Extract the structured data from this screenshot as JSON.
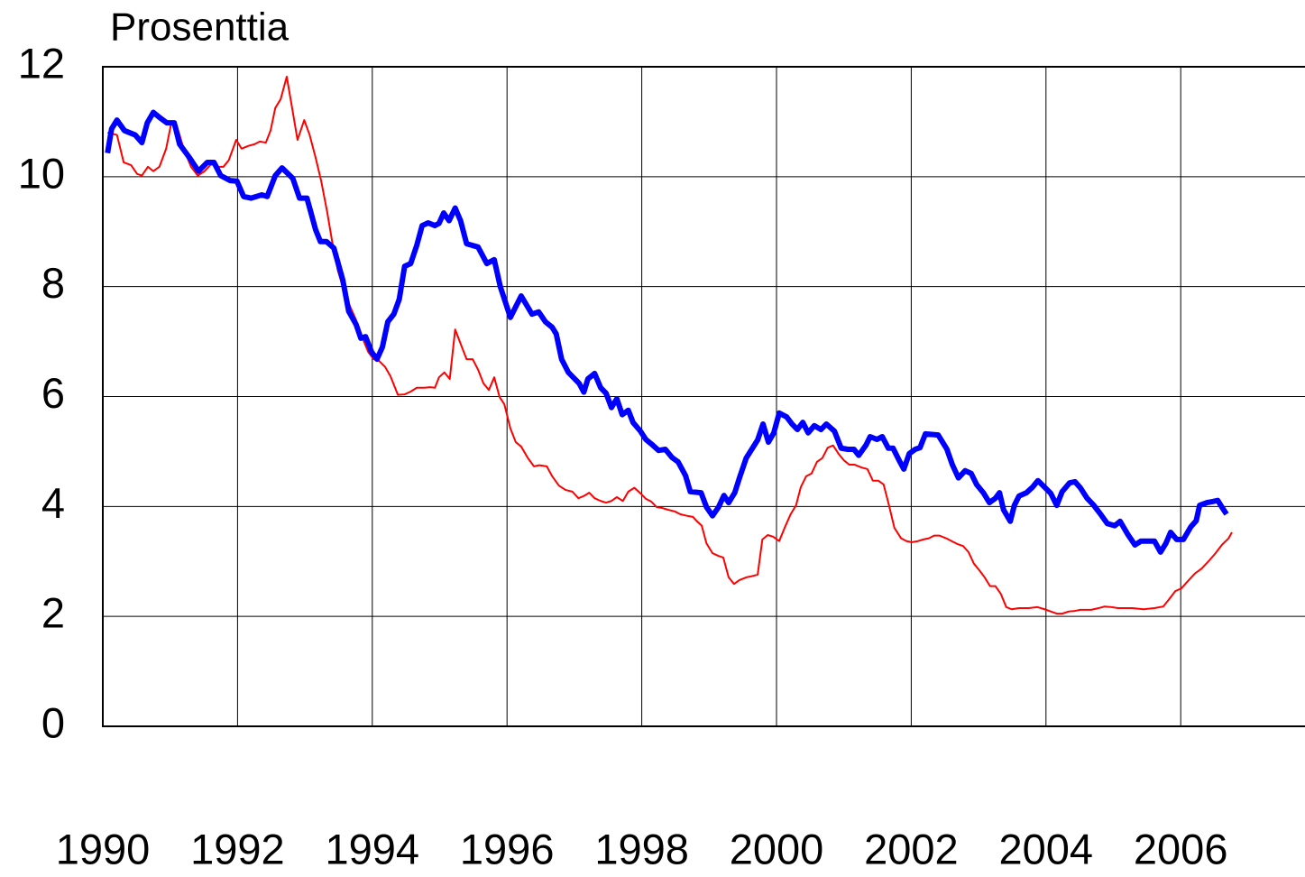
{
  "chart_data": {
    "type": "line",
    "title": "Prosenttia",
    "xlim": [
      1990,
      2008
    ],
    "xticks": [
      1990,
      1992,
      1994,
      1996,
      1998,
      2000,
      2002,
      2004,
      2006
    ],
    "ylim": [
      0,
      12
    ],
    "yticks": [
      0,
      2,
      4,
      6,
      8,
      10,
      12
    ],
    "grid": true,
    "series": [
      {
        "color": "#0000ff",
        "x": [
          1990.07,
          1990.13,
          1990.21,
          1990.32,
          1990.48,
          1990.58,
          1990.66,
          1990.75,
          1990.84,
          1990.95,
          1991.06,
          1991.14,
          1991.29,
          1991.42,
          1991.55,
          1991.65,
          1991.75,
          1991.89,
          1991.99,
          1992.09,
          1992.2,
          1992.36,
          1992.44,
          1992.56,
          1992.66,
          1992.82,
          1992.92,
          1993.03,
          1993.16,
          1993.23,
          1993.32,
          1993.43,
          1993.56,
          1993.65,
          1993.76,
          1993.83,
          1993.9,
          1993.99,
          1994.07,
          1994.15,
          1994.23,
          1994.32,
          1994.4,
          1994.48,
          1994.57,
          1994.66,
          1994.74,
          1994.83,
          1994.93,
          1994.99,
          1995.06,
          1995.14,
          1995.23,
          1995.31,
          1995.4,
          1995.57,
          1995.7,
          1995.81,
          1995.9,
          1996.05,
          1996.21,
          1996.37,
          1996.47,
          1996.57,
          1996.67,
          1996.73,
          1996.81,
          1996.91,
          1997.07,
          1997.14,
          1997.2,
          1997.3,
          1997.39,
          1997.47,
          1997.55,
          1997.63,
          1997.71,
          1997.8,
          1997.87,
          1997.98,
          1998.06,
          1998.14,
          1998.25,
          1998.35,
          1998.45,
          1998.54,
          1998.65,
          1998.72,
          1998.88,
          1998.96,
          1999.05,
          1999.14,
          1999.22,
          1999.29,
          1999.38,
          1999.45,
          1999.55,
          1999.72,
          1999.8,
          1999.88,
          1999.96,
          2000.04,
          2000.15,
          2000.23,
          2000.31,
          2000.39,
          2000.47,
          2000.56,
          2000.66,
          2000.74,
          2000.86,
          2000.96,
          2001.06,
          2001.15,
          2001.22,
          2001.33,
          2001.39,
          2001.49,
          2001.57,
          2001.66,
          2001.73,
          2001.82,
          2001.89,
          2001.97,
          2002.06,
          2002.13,
          2002.21,
          2002.4,
          2002.53,
          2002.61,
          2002.7,
          2002.8,
          2002.89,
          2002.97,
          2003.07,
          2003.16,
          2003.25,
          2003.31,
          2003.37,
          2003.47,
          2003.53,
          2003.6,
          2003.71,
          2003.8,
          2003.88,
          2003.98,
          2004.07,
          2004.16,
          2004.24,
          2004.35,
          2004.43,
          2004.51,
          2004.61,
          2004.71,
          2004.81,
          2004.91,
          2005.02,
          2005.1,
          2005.21,
          2005.32,
          2005.41,
          2005.61,
          2005.7,
          2005.78,
          2005.85,
          2005.94,
          2006.04,
          2006.15,
          2006.23,
          2006.28,
          2006.39,
          2006.48,
          2006.55,
          2006.61,
          2006.68
        ],
        "values": [
          10.43,
          10.87,
          11.03,
          10.84,
          10.76,
          10.62,
          10.98,
          11.17,
          11.08,
          10.98,
          10.98,
          10.59,
          10.34,
          10.1,
          10.26,
          10.26,
          10.02,
          9.93,
          9.92,
          9.64,
          9.61,
          9.67,
          9.64,
          10.02,
          10.16,
          9.97,
          9.61,
          9.61,
          9.03,
          8.82,
          8.82,
          8.7,
          8.13,
          7.55,
          7.31,
          7.06,
          7.09,
          6.81,
          6.68,
          6.9,
          7.36,
          7.5,
          7.77,
          8.37,
          8.42,
          8.75,
          9.11,
          9.16,
          9.11,
          9.15,
          9.34,
          9.2,
          9.43,
          9.2,
          8.78,
          8.72,
          8.42,
          8.49,
          8.0,
          7.44,
          7.83,
          7.5,
          7.54,
          7.36,
          7.26,
          7.14,
          6.68,
          6.44,
          6.24,
          6.08,
          6.32,
          6.42,
          6.16,
          6.06,
          5.8,
          5.96,
          5.67,
          5.75,
          5.53,
          5.37,
          5.22,
          5.14,
          5.02,
          5.04,
          4.89,
          4.81,
          4.56,
          4.27,
          4.25,
          3.99,
          3.83,
          3.99,
          4.2,
          4.07,
          4.25,
          4.52,
          4.88,
          5.21,
          5.5,
          5.17,
          5.34,
          5.7,
          5.63,
          5.5,
          5.4,
          5.53,
          5.34,
          5.47,
          5.4,
          5.5,
          5.37,
          5.06,
          5.04,
          5.04,
          4.93,
          5.12,
          5.27,
          5.22,
          5.27,
          5.06,
          5.06,
          4.84,
          4.68,
          4.96,
          5.04,
          5.07,
          5.32,
          5.3,
          5.04,
          4.76,
          4.52,
          4.65,
          4.6,
          4.4,
          4.25,
          4.07,
          4.15,
          4.25,
          3.94,
          3.73,
          4.02,
          4.19,
          4.25,
          4.35,
          4.47,
          4.35,
          4.24,
          4.02,
          4.27,
          4.43,
          4.45,
          4.34,
          4.15,
          4.02,
          3.86,
          3.69,
          3.65,
          3.73,
          3.5,
          3.3,
          3.37,
          3.37,
          3.17,
          3.33,
          3.53,
          3.4,
          3.4,
          3.63,
          3.74,
          4.02,
          4.07,
          4.09,
          4.11,
          3.99,
          3.86
        ]
      },
      {
        "color": "#ff0000",
        "x": [
          1990.07,
          1990.21,
          1990.31,
          1990.42,
          1990.51,
          1990.58,
          1990.67,
          1990.75,
          1990.84,
          1990.94,
          1991.02,
          1991.1,
          1991.2,
          1991.31,
          1991.41,
          1991.51,
          1991.61,
          1991.7,
          1991.79,
          1991.87,
          1991.98,
          1992.06,
          1992.16,
          1992.25,
          1992.33,
          1992.42,
          1992.49,
          1992.56,
          1992.64,
          1992.73,
          1992.81,
          1992.89,
          1992.99,
          1993.07,
          1993.16,
          1993.24,
          1993.33,
          1993.41,
          1993.49,
          1993.59,
          1993.67,
          1993.76,
          1993.84,
          1993.94,
          1994.02,
          1994.1,
          1994.19,
          1994.27,
          1994.38,
          1994.48,
          1994.57,
          1994.66,
          1994.77,
          1994.86,
          1994.93,
          1994.99,
          1995.07,
          1995.15,
          1995.23,
          1995.33,
          1995.4,
          1995.49,
          1995.57,
          1995.65,
          1995.73,
          1995.81,
          1995.89,
          1995.96,
          1996.05,
          1996.13,
          1996.21,
          1996.31,
          1996.4,
          1996.48,
          1996.59,
          1996.67,
          1996.77,
          1996.87,
          1996.97,
          1997.06,
          1997.14,
          1997.22,
          1997.3,
          1997.39,
          1997.47,
          1997.55,
          1997.63,
          1997.72,
          1997.8,
          1997.89,
          1997.98,
          1998.06,
          1998.14,
          1998.22,
          1998.31,
          1998.39,
          1998.49,
          1998.57,
          1998.67,
          1998.76,
          1998.82,
          1998.89,
          1998.96,
          1999.05,
          1999.14,
          1999.21,
          1999.29,
          1999.37,
          1999.45,
          1999.55,
          1999.63,
          1999.72,
          1999.79,
          1999.87,
          1999.95,
          2000.04,
          2000.12,
          2000.21,
          2000.29,
          2000.36,
          2000.44,
          2000.52,
          2000.6,
          2000.68,
          2000.76,
          2000.84,
          2000.92,
          2001.0,
          2001.08,
          2001.16,
          2001.26,
          2001.35,
          2001.43,
          2001.51,
          2001.59,
          2001.67,
          2001.75,
          2001.85,
          2001.93,
          2002.01,
          2002.1,
          2002.18,
          2002.26,
          2002.34,
          2002.42,
          2002.52,
          2002.6,
          2002.68,
          2002.77,
          2002.85,
          2002.93,
          2003.01,
          2003.09,
          2003.17,
          2003.25,
          2003.33,
          2003.41,
          2003.49,
          2003.6,
          2003.74,
          2003.87,
          2003.98,
          2004.07,
          2004.16,
          2004.24,
          2004.34,
          2004.43,
          2004.51,
          2004.67,
          2004.78,
          2004.87,
          2004.97,
          2005.07,
          2005.28,
          2005.45,
          2005.61,
          2005.74,
          2005.82,
          2005.92,
          2006.01,
          2006.12,
          2006.21,
          2006.31,
          2006.41,
          2006.51,
          2006.61,
          2006.71,
          2006.76
        ],
        "values": [
          10.8,
          10.76,
          10.26,
          10.21,
          10.05,
          10.02,
          10.18,
          10.1,
          10.18,
          10.51,
          11.0,
          10.92,
          10.51,
          10.18,
          10.02,
          10.1,
          10.23,
          10.18,
          10.18,
          10.3,
          10.67,
          10.51,
          10.56,
          10.59,
          10.64,
          10.62,
          10.84,
          11.25,
          11.41,
          11.82,
          11.25,
          10.67,
          11.03,
          10.76,
          10.34,
          9.93,
          9.36,
          8.78,
          8.29,
          7.88,
          7.64,
          7.39,
          7.11,
          6.81,
          6.68,
          6.65,
          6.54,
          6.37,
          6.03,
          6.04,
          6.09,
          6.16,
          6.16,
          6.17,
          6.16,
          6.35,
          6.44,
          6.32,
          7.22,
          6.9,
          6.68,
          6.68,
          6.49,
          6.24,
          6.12,
          6.35,
          5.99,
          5.86,
          5.42,
          5.17,
          5.09,
          4.88,
          4.73,
          4.75,
          4.73,
          4.55,
          4.38,
          4.3,
          4.27,
          4.15,
          4.19,
          4.25,
          4.15,
          4.1,
          4.07,
          4.1,
          4.17,
          4.1,
          4.27,
          4.34,
          4.24,
          4.14,
          4.09,
          3.99,
          3.97,
          3.94,
          3.91,
          3.86,
          3.83,
          3.81,
          3.73,
          3.65,
          3.33,
          3.15,
          3.1,
          3.07,
          2.71,
          2.59,
          2.66,
          2.71,
          2.73,
          2.76,
          3.4,
          3.48,
          3.45,
          3.37,
          3.61,
          3.86,
          4.02,
          4.35,
          4.55,
          4.6,
          4.81,
          4.88,
          5.07,
          5.11,
          4.96,
          4.84,
          4.76,
          4.76,
          4.71,
          4.68,
          4.47,
          4.47,
          4.4,
          4.02,
          3.61,
          3.42,
          3.37,
          3.35,
          3.37,
          3.4,
          3.42,
          3.47,
          3.47,
          3.42,
          3.37,
          3.32,
          3.28,
          3.17,
          2.96,
          2.84,
          2.71,
          2.55,
          2.55,
          2.41,
          2.17,
          2.13,
          2.15,
          2.15,
          2.17,
          2.13,
          2.09,
          2.05,
          2.05,
          2.09,
          2.1,
          2.12,
          2.12,
          2.15,
          2.18,
          2.17,
          2.15,
          2.15,
          2.13,
          2.15,
          2.18,
          2.3,
          2.46,
          2.51,
          2.66,
          2.78,
          2.87,
          3.0,
          3.14,
          3.3,
          3.42,
          3.53
        ]
      }
    ]
  }
}
